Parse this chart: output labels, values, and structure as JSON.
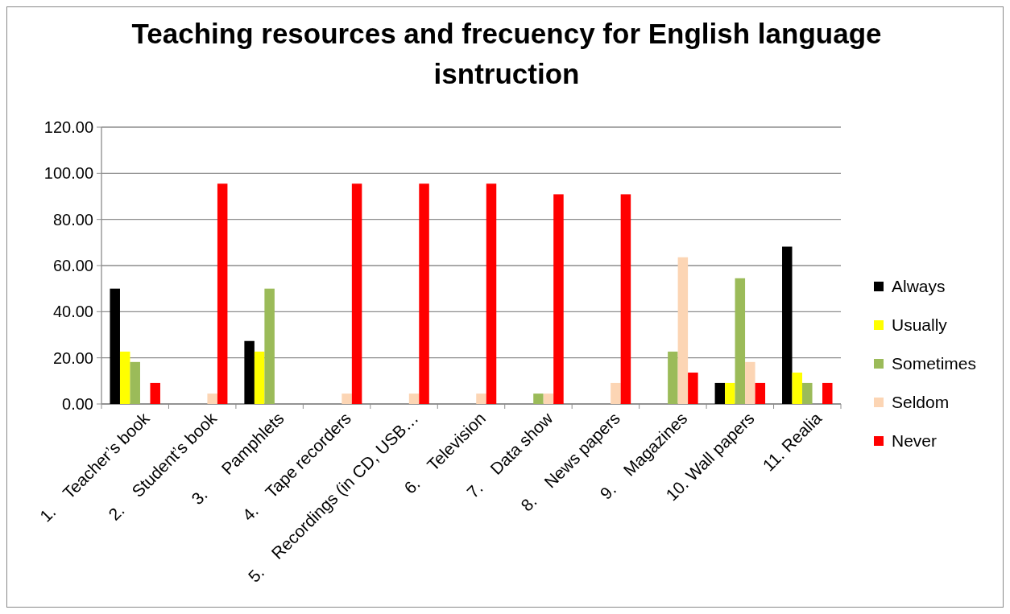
{
  "chart_data": {
    "type": "bar",
    "title": "Teaching resources and frecuency for English language isntruction",
    "categories": [
      "1.    Teacher’s book",
      "2.    Student’s book",
      "3.      Pamphlets",
      "4.    Tape recorders",
      "5.    Recordings (in CD, USB…",
      "6.    Television",
      "7.    Data show",
      "8.    News papers",
      "9.    Magazines",
      "10. Wall papers",
      "11. Realia"
    ],
    "series": [
      {
        "name": "Always",
        "color": "#000000",
        "values": [
          50,
          0,
          27.3,
          0,
          0,
          0,
          0,
          0,
          0,
          9.1,
          68.2
        ]
      },
      {
        "name": "Usually",
        "color": "#ffff00",
        "values": [
          22.7,
          0,
          22.7,
          0,
          0,
          0,
          0,
          0,
          0,
          9.1,
          13.6
        ]
      },
      {
        "name": "Sometimes",
        "color": "#9bbb59",
        "values": [
          18.2,
          0,
          50,
          0,
          0,
          0,
          4.5,
          0,
          22.7,
          54.5,
          9.1
        ]
      },
      {
        "name": "Seldom",
        "color": "#fcd5b4",
        "values": [
          0,
          4.5,
          0,
          4.5,
          4.5,
          4.5,
          4.5,
          9.1,
          63.6,
          18.2,
          0
        ]
      },
      {
        "name": "Never",
        "color": "#ff0000",
        "values": [
          9.1,
          95.5,
          0,
          95.5,
          95.5,
          95.5,
          90.9,
          90.9,
          13.6,
          9.1,
          9.1
        ]
      }
    ],
    "ylim": [
      0,
      120
    ],
    "yticks": [
      {
        "value": 0,
        "label": "0.00"
      },
      {
        "value": 20,
        "label": "20.00"
      },
      {
        "value": 40,
        "label": "40.00"
      },
      {
        "value": 60,
        "label": "60.00"
      },
      {
        "value": 80,
        "label": "80.00"
      },
      {
        "value": 100,
        "label": "100.00"
      },
      {
        "value": 120,
        "label": "120.00"
      }
    ],
    "grid": "y",
    "legend": "right"
  }
}
